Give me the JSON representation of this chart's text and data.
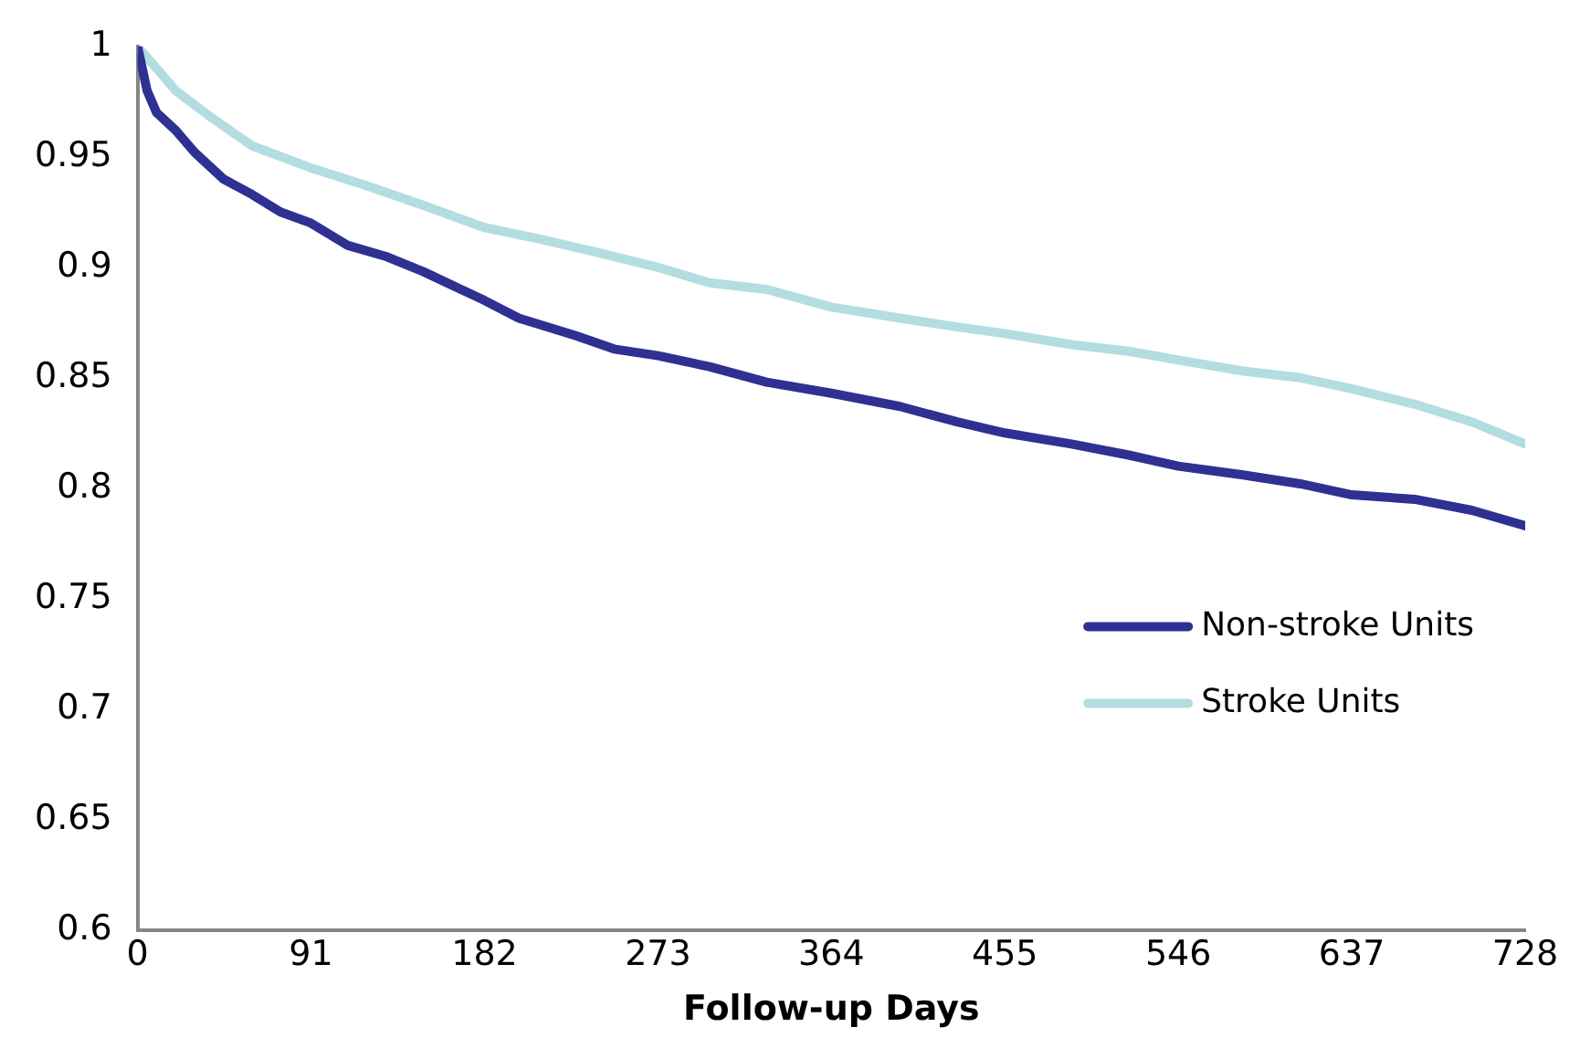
{
  "chart_data": {
    "type": "line",
    "xlabel": "Follow-up Days",
    "xlim": [
      0,
      728
    ],
    "xticks": [
      0,
      91,
      182,
      273,
      364,
      455,
      546,
      637,
      728
    ],
    "ylim": [
      0.6,
      1
    ],
    "yticks": [
      0.6,
      0.65,
      0.7,
      0.75,
      0.8,
      0.85,
      0.9,
      0.95,
      1
    ],
    "grid": false,
    "legend": "right",
    "marker": "none",
    "line_style": "solid",
    "series": [
      {
        "name": "Non-stroke Units",
        "color": "#2e3192",
        "x": [
          0,
          5,
          10,
          20,
          30,
          45,
          60,
          75,
          91,
          110,
          130,
          150,
          182,
          200,
          230,
          250,
          273,
          300,
          330,
          364,
          400,
          430,
          455,
          490,
          520,
          546,
          580,
          610,
          637,
          670,
          700,
          728
        ],
        "values": [
          1.0,
          0.98,
          0.97,
          0.962,
          0.952,
          0.94,
          0.933,
          0.925,
          0.92,
          0.91,
          0.905,
          0.898,
          0.885,
          0.877,
          0.869,
          0.863,
          0.86,
          0.855,
          0.848,
          0.843,
          0.837,
          0.83,
          0.825,
          0.82,
          0.815,
          0.81,
          0.806,
          0.802,
          0.797,
          0.795,
          0.79,
          0.783
        ]
      },
      {
        "name": "Stroke Units",
        "color": "#b3dde0",
        "x": [
          0,
          10,
          20,
          40,
          60,
          91,
          120,
          150,
          182,
          210,
          240,
          273,
          300,
          330,
          364,
          400,
          430,
          455,
          490,
          520,
          546,
          580,
          610,
          637,
          670,
          700,
          728
        ],
        "values": [
          1.0,
          0.99,
          0.98,
          0.967,
          0.955,
          0.945,
          0.937,
          0.928,
          0.918,
          0.913,
          0.907,
          0.9,
          0.893,
          0.89,
          0.882,
          0.877,
          0.873,
          0.87,
          0.865,
          0.862,
          0.858,
          0.853,
          0.85,
          0.845,
          0.838,
          0.83,
          0.82
        ]
      }
    ]
  }
}
